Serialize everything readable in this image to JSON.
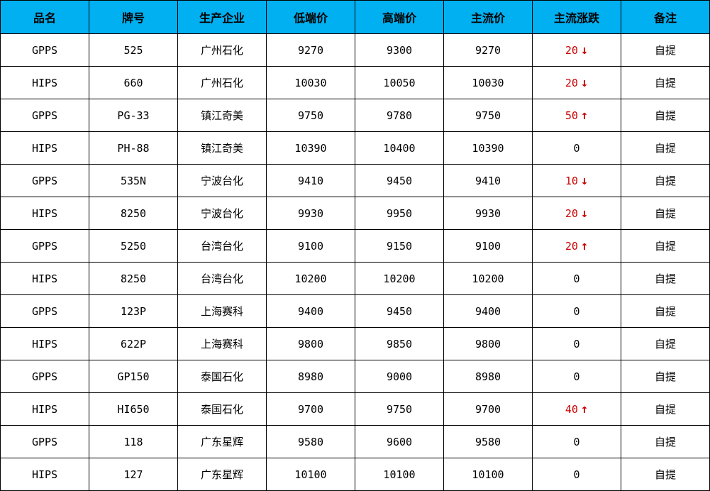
{
  "colors": {
    "header_bg": "#00B0F0",
    "change_red": "#CC0000",
    "border": "#000000",
    "cell_bg": "#FFFFFF"
  },
  "table": {
    "columns": {
      "product": "品名",
      "grade": "牌号",
      "producer": "生产企业",
      "low_price": "低端价",
      "high_price": "高端价",
      "mainstream_price": "主流价",
      "mainstream_change": "主流涨跌",
      "note": "备注"
    },
    "rows": [
      {
        "product": "GPPS",
        "grade": "525",
        "producer": "广州石化",
        "low_price": "9270",
        "high_price": "9300",
        "mainstream_price": "9270",
        "change_value": "20",
        "change_arrow": "↓",
        "change_is_red": true,
        "note": "自提"
      },
      {
        "product": "HIPS",
        "grade": "660",
        "producer": "广州石化",
        "low_price": "10030",
        "high_price": "10050",
        "mainstream_price": "10030",
        "change_value": "20",
        "change_arrow": "↓",
        "change_is_red": true,
        "note": "自提"
      },
      {
        "product": "GPPS",
        "grade": "PG-33",
        "producer": "镇江奇美",
        "low_price": "9750",
        "high_price": "9780",
        "mainstream_price": "9750",
        "change_value": "50",
        "change_arrow": "↑",
        "change_is_red": true,
        "note": "自提"
      },
      {
        "product": "HIPS",
        "grade": "PH-88",
        "producer": "镇江奇美",
        "low_price": "10390",
        "high_price": "10400",
        "mainstream_price": "10390",
        "change_value": "0",
        "change_arrow": "",
        "change_is_red": false,
        "note": "自提"
      },
      {
        "product": "GPPS",
        "grade": "535N",
        "producer": "宁波台化",
        "low_price": "9410",
        "high_price": "9450",
        "mainstream_price": "9410",
        "change_value": "10",
        "change_arrow": "↓",
        "change_is_red": true,
        "note": "自提"
      },
      {
        "product": "HIPS",
        "grade": "8250",
        "producer": "宁波台化",
        "low_price": "9930",
        "high_price": "9950",
        "mainstream_price": "9930",
        "change_value": "20",
        "change_arrow": "↓",
        "change_is_red": true,
        "note": "自提"
      },
      {
        "product": "GPPS",
        "grade": "5250",
        "producer": "台湾台化",
        "low_price": "9100",
        "high_price": "9150",
        "mainstream_price": "9100",
        "change_value": "20",
        "change_arrow": "↑",
        "change_is_red": true,
        "note": "自提"
      },
      {
        "product": "HIPS",
        "grade": "8250",
        "producer": "台湾台化",
        "low_price": "10200",
        "high_price": "10200",
        "mainstream_price": "10200",
        "change_value": "0",
        "change_arrow": "",
        "change_is_red": false,
        "note": "自提"
      },
      {
        "product": "GPPS",
        "grade": "123P",
        "producer": "上海赛科",
        "low_price": "9400",
        "high_price": "9450",
        "mainstream_price": "9400",
        "change_value": "0",
        "change_arrow": "",
        "change_is_red": false,
        "note": "自提"
      },
      {
        "product": "HIPS",
        "grade": "622P",
        "producer": "上海赛科",
        "low_price": "9800",
        "high_price": "9850",
        "mainstream_price": "9800",
        "change_value": "0",
        "change_arrow": "",
        "change_is_red": false,
        "note": "自提"
      },
      {
        "product": "GPPS",
        "grade": "GP150",
        "producer": "泰国石化",
        "low_price": "8980",
        "high_price": "9000",
        "mainstream_price": "8980",
        "change_value": "0",
        "change_arrow": "",
        "change_is_red": false,
        "note": "自提"
      },
      {
        "product": "HIPS",
        "grade": "HI650",
        "producer": "泰国石化",
        "low_price": "9700",
        "high_price": "9750",
        "mainstream_price": "9700",
        "change_value": "40",
        "change_arrow": "↑",
        "change_is_red": true,
        "note": "自提"
      },
      {
        "product": "GPPS",
        "grade": "118",
        "producer": "广东星辉",
        "low_price": "9580",
        "high_price": "9600",
        "mainstream_price": "9580",
        "change_value": "0",
        "change_arrow": "",
        "change_is_red": false,
        "note": "自提"
      },
      {
        "product": "HIPS",
        "grade": "127",
        "producer": "广东星辉",
        "low_price": "10100",
        "high_price": "10100",
        "mainstream_price": "10100",
        "change_value": "0",
        "change_arrow": "",
        "change_is_red": false,
        "note": "自提"
      }
    ]
  }
}
